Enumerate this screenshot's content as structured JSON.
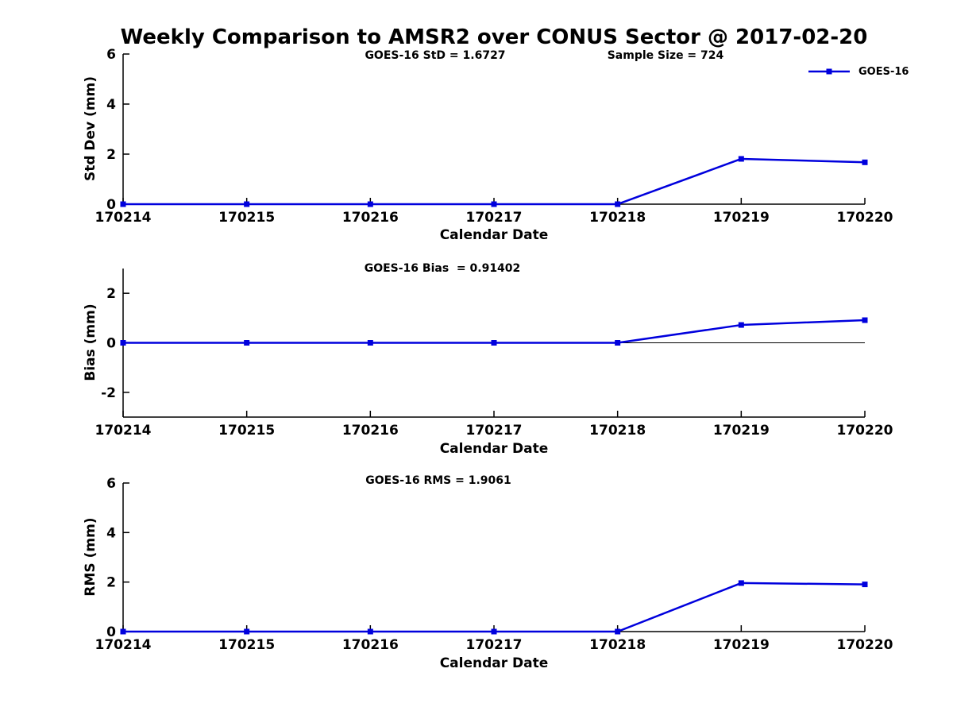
{
  "title": "Weekly Comparison to AMSR2 over CONUS Sector @ 2017-02-20",
  "legend": {
    "label": "GOES-16"
  },
  "colors": {
    "line": "#0000dd",
    "axis": "#000000",
    "background": "#ffffff",
    "text": "#000000"
  },
  "chart_data": [
    {
      "type": "line",
      "name": "std-dev",
      "title": "GOES-16 StD = 1.6727",
      "annotation": "Sample Size = 724",
      "ylabel": "Std Dev (mm)",
      "xlabel": "Calendar Date",
      "categories": [
        "170214",
        "170215",
        "170216",
        "170217",
        "170218",
        "170219",
        "170220"
      ],
      "series": [
        {
          "name": "GOES-16",
          "values": [
            0,
            0,
            0,
            0,
            0,
            1.81,
            1.6727
          ]
        }
      ],
      "ylim": [
        0,
        6
      ],
      "yticks": [
        0,
        2,
        4,
        6
      ],
      "zero_line": false,
      "grid": false,
      "legend_position": "top-right"
    },
    {
      "type": "line",
      "name": "bias",
      "title": "GOES-16 Bias  = 0.91402",
      "annotation": "",
      "ylabel": "Bias (mm)",
      "xlabel": "Calendar Date",
      "categories": [
        "170214",
        "170215",
        "170216",
        "170217",
        "170218",
        "170219",
        "170220"
      ],
      "series": [
        {
          "name": "GOES-16",
          "values": [
            0,
            0,
            0,
            0,
            0,
            0.72,
            0.91402
          ]
        }
      ],
      "ylim": [
        -3,
        3
      ],
      "yticks": [
        -2,
        0,
        2
      ],
      "zero_line": true,
      "grid": false
    },
    {
      "type": "line",
      "name": "rms",
      "title": "GOES-16 RMS = 1.9061",
      "annotation": "",
      "ylabel": "RMS (mm)",
      "xlabel": "Calendar Date",
      "categories": [
        "170214",
        "170215",
        "170216",
        "170217",
        "170218",
        "170219",
        "170220"
      ],
      "series": [
        {
          "name": "GOES-16",
          "values": [
            0,
            0,
            0,
            0,
            0,
            1.96,
            1.9061
          ]
        }
      ],
      "ylim": [
        0,
        6
      ],
      "yticks": [
        0,
        2,
        4,
        6
      ],
      "zero_line": false,
      "grid": false
    }
  ]
}
